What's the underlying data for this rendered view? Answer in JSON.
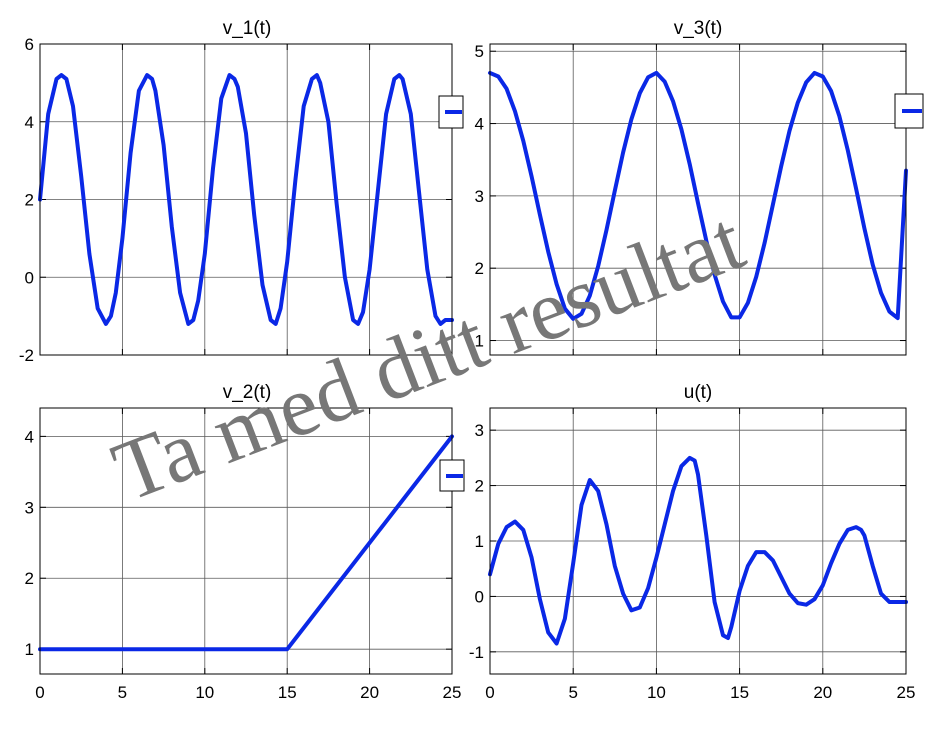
{
  "watermark": "Ta med ditt resultat",
  "colors": {
    "series": "#0a28e6",
    "grid": "#5a5a5a",
    "watermark": "#777777"
  },
  "chart_data": [
    {
      "id": "v1",
      "type": "line",
      "title": "v_1(t)",
      "xlim": [
        0,
        25
      ],
      "ylim": [
        -2,
        6
      ],
      "xticks": [
        0,
        5,
        10,
        15,
        20,
        25
      ],
      "yticks": [
        -2,
        0,
        2,
        4,
        6
      ],
      "show_xtick_labels": false,
      "grid": true,
      "legend": "right-middle",
      "series": [
        {
          "color": "#0a28e6",
          "x": [
            0,
            0.5,
            1,
            1.3,
            1.6,
            2,
            2.5,
            3,
            3.5,
            4,
            4.3,
            4.6,
            5,
            5.5,
            6,
            6.5,
            6.8,
            7,
            7.5,
            8,
            8.5,
            9,
            9.3,
            9.6,
            10,
            10.5,
            11,
            11.5,
            11.8,
            12,
            12.5,
            13,
            13.5,
            14,
            14.3,
            14.6,
            15,
            15.5,
            16,
            16.5,
            16.8,
            17,
            17.5,
            18,
            18.5,
            19,
            19.3,
            19.6,
            20,
            20.5,
            21,
            21.5,
            21.8,
            22,
            22.5,
            23,
            23.5,
            24,
            24.3,
            24.6,
            25
          ],
          "y": [
            2.0,
            4.2,
            5.1,
            5.2,
            5.1,
            4.4,
            2.6,
            0.6,
            -0.8,
            -1.2,
            -1.0,
            -0.4,
            1.0,
            3.2,
            4.8,
            5.2,
            5.1,
            4.8,
            3.4,
            1.3,
            -0.4,
            -1.2,
            -1.1,
            -0.6,
            0.6,
            2.8,
            4.6,
            5.2,
            5.1,
            4.9,
            3.7,
            1.6,
            -0.2,
            -1.1,
            -1.2,
            -0.8,
            0.4,
            2.5,
            4.4,
            5.1,
            5.2,
            5.0,
            4.0,
            1.9,
            0.0,
            -1.1,
            -1.2,
            -0.9,
            0.2,
            2.2,
            4.2,
            5.1,
            5.2,
            5.1,
            4.2,
            2.2,
            0.2,
            -1.0,
            -1.2,
            -1.1,
            -1.1
          ]
        }
      ]
    },
    {
      "id": "v3",
      "type": "line",
      "title": "v_3(t)",
      "xlim": [
        0,
        25
      ],
      "ylim": [
        0.8,
        5.1
      ],
      "xticks": [
        0,
        5,
        10,
        15,
        20,
        25
      ],
      "yticks": [
        1,
        2,
        3,
        4,
        5
      ],
      "show_xtick_labels": false,
      "grid": true,
      "legend": "right-middle",
      "series": [
        {
          "color": "#0a28e6",
          "x": [
            0,
            0.5,
            1,
            1.5,
            2,
            2.5,
            3,
            3.5,
            4,
            4.5,
            5,
            5.5,
            6,
            6.5,
            7,
            7.5,
            8,
            8.5,
            9,
            9.5,
            10,
            10.5,
            11,
            11.5,
            12,
            12.5,
            13,
            13.5,
            14,
            14.5,
            15,
            15.5,
            16,
            16.5,
            17,
            17.5,
            18,
            18.5,
            19,
            19.5,
            20,
            20.5,
            21,
            21.5,
            22,
            22.5,
            23,
            23.5,
            24,
            24.5,
            25
          ],
          "y": [
            4.7,
            4.65,
            4.48,
            4.17,
            3.76,
            3.27,
            2.74,
            2.23,
            1.78,
            1.44,
            1.3,
            1.37,
            1.62,
            2.03,
            2.53,
            3.07,
            3.6,
            4.06,
            4.42,
            4.64,
            4.7,
            4.58,
            4.31,
            3.92,
            3.44,
            2.9,
            2.38,
            1.91,
            1.54,
            1.32,
            1.32,
            1.52,
            1.88,
            2.35,
            2.88,
            3.41,
            3.9,
            4.29,
            4.57,
            4.7,
            4.65,
            4.45,
            4.1,
            3.63,
            3.1,
            2.55,
            2.05,
            1.66,
            1.4,
            1.31,
            3.35
          ]
        }
      ]
    },
    {
      "id": "v2",
      "type": "line",
      "title": "v_2(t)",
      "xlim": [
        0,
        25
      ],
      "ylim": [
        0.65,
        4.4
      ],
      "xticks": [
        0,
        5,
        10,
        15,
        20,
        25
      ],
      "yticks": [
        1,
        2,
        3,
        4
      ],
      "show_xtick_labels": true,
      "grid": true,
      "legend": "right-top",
      "series": [
        {
          "color": "#0a28e6",
          "x": [
            0,
            15,
            25
          ],
          "y": [
            1,
            1,
            4
          ]
        }
      ]
    },
    {
      "id": "u",
      "type": "line",
      "title": "u(t)",
      "xlim": [
        0,
        25
      ],
      "ylim": [
        -1.4,
        3.4
      ],
      "xticks": [
        0,
        5,
        10,
        15,
        20,
        25
      ],
      "yticks": [
        -1,
        0,
        1,
        2,
        3
      ],
      "show_xtick_labels": true,
      "grid": true,
      "legend": "none",
      "series": [
        {
          "color": "#0a28e6",
          "x": [
            0,
            0.5,
            1,
            1.5,
            2,
            2.5,
            3,
            3.5,
            4,
            4.5,
            5,
            5.5,
            6,
            6.5,
            7,
            7.5,
            8,
            8.5,
            9,
            9.5,
            10,
            10.5,
            11,
            11.5,
            12,
            12.3,
            12.5,
            13,
            13.5,
            14,
            14.3,
            14.5,
            15,
            15.5,
            16,
            16.5,
            17,
            17.5,
            18,
            18.5,
            19,
            19.5,
            20,
            20.5,
            21,
            21.5,
            22,
            22.3,
            22.5,
            23,
            23.5,
            24,
            24.5,
            25
          ],
          "y": [
            0.4,
            0.95,
            1.25,
            1.35,
            1.2,
            0.7,
            -0.05,
            -0.65,
            -0.85,
            -0.4,
            0.6,
            1.65,
            2.1,
            1.9,
            1.3,
            0.55,
            0.05,
            -0.25,
            -0.2,
            0.15,
            0.7,
            1.3,
            1.9,
            2.35,
            2.5,
            2.45,
            2.2,
            1.1,
            -0.1,
            -0.7,
            -0.75,
            -0.55,
            0.1,
            0.55,
            0.8,
            0.8,
            0.65,
            0.35,
            0.05,
            -0.12,
            -0.15,
            -0.05,
            0.2,
            0.6,
            0.95,
            1.2,
            1.25,
            1.2,
            1.1,
            0.55,
            0.05,
            -0.1,
            -0.1,
            -0.1
          ]
        }
      ]
    }
  ]
}
